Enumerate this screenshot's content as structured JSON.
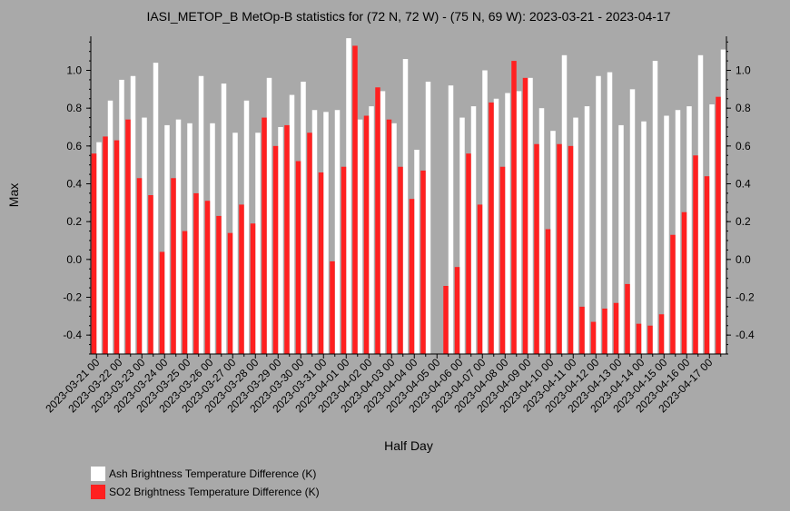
{
  "chart_data": {
    "type": "bar",
    "title": "IASI_METOP_B MetOp-B statistics for (72 N, 72 W) - (75 N, 69 W): 2023-03-21 - 2023-04-17",
    "xlabel": "Half Day",
    "ylabel": "Max",
    "ylim": [
      -0.5,
      1.18
    ],
    "yticks": [
      -0.4,
      -0.2,
      0.0,
      0.2,
      0.4,
      0.6,
      0.8,
      1.0
    ],
    "ytick_labels": [
      "-0.4",
      "-0.2",
      "0.0",
      "0.2",
      "0.4",
      "0.6",
      "0.8",
      "1.0"
    ],
    "x_labels": [
      "2023-03-21 00",
      "2023-03-22 00",
      "2023-03-23 00",
      "2023-03-24 00",
      "2023-03-25 00",
      "2023-03-26 00",
      "2023-03-27 00",
      "2023-03-28 00",
      "2023-03-29 00",
      "2023-03-30 00",
      "2023-03-31 00",
      "2023-04-01 00",
      "2023-04-02 00",
      "2023-04-03 00",
      "2023-04-04 00",
      "2023-04-05 00",
      "2023-04-06 00",
      "2023-04-07 00",
      "2023-04-08 00",
      "2023-04-09 00",
      "2023-04-10 00",
      "2023-04-11 00",
      "2023-04-12 00",
      "2023-04-13 00",
      "2023-04-14 00",
      "2023-04-15 00",
      "2023-04-16 00",
      "2023-04-17 00"
    ],
    "grid": false,
    "legend_position": "bottom-left",
    "series": [
      {
        "name": "Ash Brightness Temperature Difference (K)",
        "color": "#ffffff",
        "values": [
          0.62,
          0.84,
          0.95,
          0.97,
          0.75,
          1.04,
          0.71,
          0.74,
          0.72,
          0.97,
          0.72,
          0.93,
          0.67,
          0.84,
          0.67,
          0.96,
          0.7,
          0.87,
          0.94,
          0.79,
          0.78,
          0.79,
          1.17,
          0.74,
          0.81,
          0.89,
          0.72,
          1.06,
          0.58,
          0.94,
          null,
          0.92,
          0.75,
          0.81,
          1.0,
          0.85,
          0.88,
          0.89,
          0.96,
          0.8,
          0.68,
          1.08,
          0.75,
          0.81,
          0.97,
          0.99,
          0.71,
          0.9,
          0.73,
          1.05,
          0.76,
          0.79,
          0.81,
          1.08,
          0.82,
          1.11
        ]
      },
      {
        "name": "SO2 Brightness Temperature Difference (K)",
        "color": "#ff2020",
        "values": [
          0.56,
          0.65,
          0.63,
          0.74,
          0.43,
          0.34,
          0.04,
          0.43,
          0.15,
          0.35,
          0.31,
          0.23,
          0.14,
          0.29,
          0.19,
          0.75,
          0.6,
          0.71,
          0.52,
          0.67,
          0.46,
          -0.01,
          0.49,
          1.13,
          0.76,
          0.91,
          0.74,
          0.49,
          0.32,
          0.47,
          null,
          -0.14,
          -0.04,
          0.56,
          0.29,
          0.83,
          0.49,
          1.05,
          0.96,
          0.61,
          0.16,
          0.61,
          0.6,
          -0.25,
          -0.33,
          -0.26,
          -0.23,
          -0.13,
          -0.34,
          -0.35,
          -0.29,
          0.13,
          0.25,
          0.55,
          0.44,
          0.86
        ]
      }
    ]
  }
}
